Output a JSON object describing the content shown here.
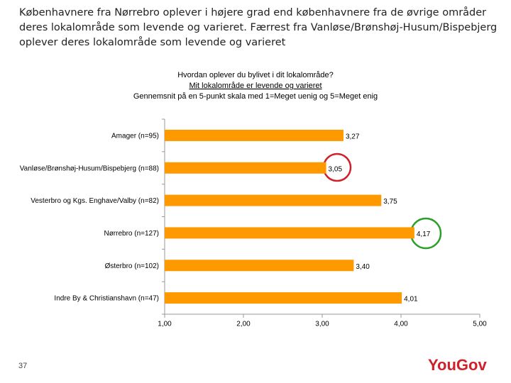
{
  "heading": "Københavnere fra Nørrebro oplever i højere grad end københavnere fra de øvrige områder deres lokalområde som levende og varieret. Færrest fra Vanløse/Brønshøj-Husum/Bispebjerg oplever deres lokalområde som levende og varieret",
  "page_number": "37",
  "logo": "YouGov",
  "chart_data": {
    "type": "hbar",
    "title": "Hvordan oplever du bylivet i dit lokalområde?",
    "subtitle": "Mit lokalområde er levende og varieret",
    "note": "Gennemsnit på en 5-punkt skala med 1=Meget uenig og 5=Meget enig",
    "categories": [
      "Amager (n=95)",
      "Vanløse/Brønshøj-Husum/Bispebjerg (n=88)",
      "Vesterbro og Kgs. Enghave/Valby (n=82)",
      "Nørrebro (n=127)",
      "Østerbro (n=102)",
      "Indre By & Christianshavn (n=47)"
    ],
    "values": [
      3.27,
      3.05,
      3.75,
      4.17,
      3.4,
      4.01
    ],
    "value_labels": [
      "3,27",
      "3,05",
      "3,75",
      "4,17",
      "3,40",
      "4,01"
    ],
    "color": "#ff9900",
    "xlim": [
      1,
      5
    ],
    "xticks": [
      {
        "value": 1,
        "label": "1,00"
      },
      {
        "value": 2,
        "label": "2,00"
      },
      {
        "value": 3,
        "label": "3,00"
      },
      {
        "value": 4,
        "label": "4,00"
      },
      {
        "value": 5,
        "label": "5,00"
      }
    ]
  }
}
